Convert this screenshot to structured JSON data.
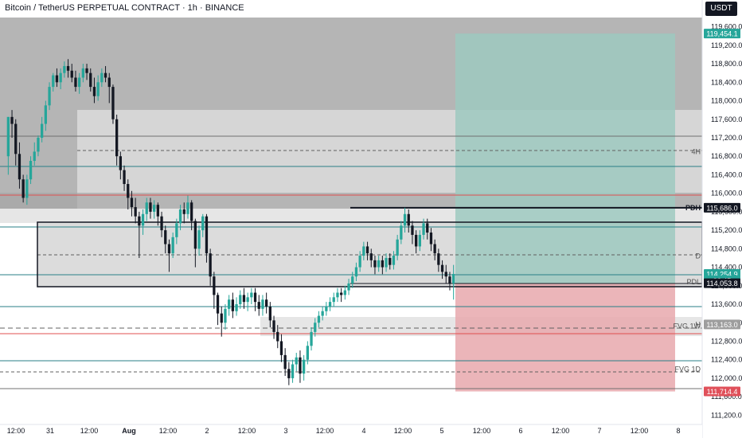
{
  "header": {
    "symbol": "Bitcoin / TetherUS PERPETUAL CONTRACT",
    "interval": "1h",
    "exchange": "BINANCE",
    "currency": "USDT"
  },
  "colors": {
    "up": "#26a69a",
    "down": "#131722",
    "target_zone": "#9ec9bf",
    "stop_zone": "#e8a8ad",
    "zone_gray": "#c8c8c8",
    "current_price": "#26a69a"
  },
  "chart_data": {
    "type": "candlestick",
    "y_range": [
      111000,
      119800
    ],
    "y_ticks": [
      119600,
      119200,
      118800,
      118400,
      118000,
      117600,
      117200,
      116800,
      116400,
      116000,
      115600,
      115200,
      114800,
      114400,
      114000,
      113600,
      113200,
      112800,
      112400,
      112000,
      111600,
      111200
    ],
    "x_tick_labels": [
      "12:00",
      "31",
      "12:00",
      "Aug",
      "12:00",
      "2",
      "12:00",
      "3",
      "12:00",
      "4",
      "12:00",
      "5",
      "12:00",
      "6",
      "12:00",
      "7",
      "12:00",
      "8"
    ],
    "price_tags": [
      {
        "label": "119,454.1",
        "value": 119454.1,
        "kind": "target"
      },
      {
        "label": "115,686.0",
        "value": 115686,
        "kind": "dark"
      },
      {
        "label": "114,254.9",
        "value": 114254.9,
        "kind": "current"
      },
      {
        "label": "06:45",
        "value": 114120,
        "kind": "current"
      },
      {
        "label": "114,053.8",
        "value": 114053.8,
        "kind": "dark"
      },
      {
        "label": "113,163.0",
        "value": 113163,
        "kind": "gray"
      },
      {
        "label": "111,714.4",
        "value": 111714.4,
        "kind": "stop"
      }
    ],
    "level_labels": [
      {
        "label": "4H",
        "value": 116900
      },
      {
        "label": "PDH",
        "value": 115686
      },
      {
        "label": "D",
        "value": 114640
      },
      {
        "label": "PDL",
        "value": 114080
      },
      {
        "label": "H",
        "value": 113163
      },
      {
        "label": "FVG 1W",
        "value": 113130
      },
      {
        "label": "FVG 1D",
        "value": 112200
      }
    ],
    "zones": {
      "entry": 114054,
      "target": 119454,
      "stop": 111714
    },
    "candles": [
      [
        116800,
        117650,
        117650,
        116400
      ],
      [
        117650,
        117500,
        117800,
        117200
      ],
      [
        117500,
        116850,
        117600,
        116600
      ],
      [
        116850,
        116300,
        117100,
        116100
      ],
      [
        116300,
        115900,
        116400,
        115800
      ],
      [
        115900,
        116300,
        116400,
        115750
      ],
      [
        116300,
        116700,
        116800,
        116200
      ],
      [
        116700,
        116900,
        117100,
        116600
      ],
      [
        116900,
        117200,
        117250,
        116800
      ],
      [
        117200,
        117500,
        117650,
        117100
      ],
      [
        117500,
        117900,
        118000,
        117350
      ],
      [
        117900,
        118300,
        118400,
        117800
      ],
      [
        118300,
        118550,
        118600,
        118200
      ],
      [
        118550,
        118400,
        118700,
        118300
      ],
      [
        118400,
        118600,
        118700,
        118250
      ],
      [
        118600,
        118750,
        118850,
        118500
      ],
      [
        118750,
        118650,
        118900,
        118500
      ],
      [
        118650,
        118500,
        118800,
        118400
      ],
      [
        118500,
        118300,
        118650,
        118200
      ],
      [
        118300,
        118500,
        118600,
        118150
      ],
      [
        118500,
        118700,
        118800,
        118400
      ],
      [
        118700,
        118600,
        118800,
        118450
      ],
      [
        118600,
        118300,
        118700,
        118200
      ],
      [
        118300,
        118100,
        118500,
        117950
      ],
      [
        118100,
        118400,
        118550,
        118000
      ],
      [
        118400,
        118600,
        118700,
        118300
      ],
      [
        118600,
        118500,
        118750,
        118400
      ],
      [
        118500,
        118300,
        118600,
        117950
      ],
      [
        118300,
        117600,
        118350,
        117500
      ],
      [
        117600,
        116800,
        117700,
        116600
      ],
      [
        116800,
        116500,
        116900,
        116300
      ],
      [
        116500,
        116200,
        116600,
        116050
      ],
      [
        116200,
        115900,
        116300,
        115650
      ],
      [
        115900,
        115700,
        116050,
        115500
      ],
      [
        115700,
        115500,
        115900,
        115350
      ],
      [
        115500,
        115300,
        115600,
        114600
      ],
      [
        115300,
        115550,
        115650,
        115100
      ],
      [
        115550,
        115800,
        115900,
        115400
      ],
      [
        115800,
        115600,
        115900,
        115450
      ],
      [
        115600,
        115750,
        115850,
        115450
      ],
      [
        115750,
        115500,
        115800,
        115300
      ],
      [
        115500,
        115200,
        115600,
        115050
      ],
      [
        115200,
        114900,
        115300,
        114700
      ],
      [
        114900,
        114700,
        115000,
        114300
      ],
      [
        114700,
        115050,
        115150,
        114600
      ],
      [
        115050,
        115350,
        115450,
        114900
      ],
      [
        115350,
        115650,
        115750,
        115200
      ],
      [
        115650,
        115550,
        115800,
        115350
      ],
      [
        115550,
        115800,
        115950,
        115450
      ],
      [
        115800,
        115400,
        115850,
        115200
      ],
      [
        115400,
        114800,
        115450,
        114400
      ],
      [
        114800,
        115200,
        115300,
        114650
      ],
      [
        115200,
        115500,
        115550,
        115050
      ],
      [
        115500,
        114700,
        115550,
        114500
      ],
      [
        114700,
        114200,
        114800,
        114000
      ],
      [
        114200,
        113800,
        114300,
        113500
      ],
      [
        113800,
        113400,
        113850,
        113150
      ],
      [
        113400,
        113200,
        113550,
        112900
      ],
      [
        113200,
        113500,
        113600,
        113050
      ],
      [
        113500,
        113700,
        113800,
        113350
      ],
      [
        113700,
        113450,
        113850,
        113300
      ],
      [
        113450,
        113600,
        113750,
        113350
      ],
      [
        113600,
        113800,
        113900,
        113500
      ],
      [
        113800,
        113650,
        113950,
        113500
      ],
      [
        113650,
        113750,
        113850,
        113450
      ],
      [
        113750,
        113850,
        113950,
        113600
      ],
      [
        113850,
        113650,
        113950,
        113450
      ],
      [
        113650,
        113500,
        113800,
        113350
      ],
      [
        113500,
        113700,
        113800,
        113350
      ],
      [
        113700,
        113550,
        113850,
        113400
      ],
      [
        113550,
        113250,
        113650,
        113100
      ],
      [
        113250,
        113000,
        113350,
        112850
      ],
      [
        113000,
        112800,
        113150,
        112650
      ],
      [
        112800,
        112500,
        112950,
        112350
      ],
      [
        112500,
        112200,
        112650,
        112050
      ],
      [
        112200,
        112000,
        112350,
        111850
      ],
      [
        112000,
        112300,
        112400,
        111900
      ],
      [
        112300,
        112450,
        112550,
        112150
      ],
      [
        112450,
        112100,
        112600,
        111900
      ],
      [
        112100,
        112400,
        112500,
        111950
      ],
      [
        112400,
        112700,
        112800,
        112300
      ],
      [
        112700,
        113000,
        113100,
        112600
      ],
      [
        113000,
        113200,
        113300,
        112900
      ],
      [
        113200,
        113350,
        113450,
        113100
      ],
      [
        113350,
        113450,
        113550,
        113250
      ],
      [
        113450,
        113550,
        113650,
        113350
      ],
      [
        113550,
        113650,
        113750,
        113450
      ],
      [
        113650,
        113750,
        113850,
        113550
      ],
      [
        113750,
        113850,
        113950,
        113650
      ],
      [
        113850,
        113800,
        113950,
        113650
      ],
      [
        113800,
        113900,
        114000,
        113700
      ],
      [
        113900,
        114050,
        114150,
        113800
      ],
      [
        114050,
        114200,
        114300,
        113950
      ],
      [
        114200,
        114400,
        114500,
        114100
      ],
      [
        114400,
        114650,
        114750,
        114300
      ],
      [
        114650,
        114850,
        114950,
        114550
      ],
      [
        114850,
        114700,
        114950,
        114550
      ],
      [
        114700,
        114550,
        114800,
        114400
      ],
      [
        114550,
        114400,
        114650,
        114250
      ],
      [
        114400,
        114550,
        114650,
        114300
      ],
      [
        114550,
        114400,
        114650,
        114250
      ],
      [
        114400,
        114600,
        114700,
        114300
      ],
      [
        114600,
        114450,
        114700,
        114350
      ],
      [
        114450,
        114650,
        114750,
        114350
      ],
      [
        114650,
        115000,
        115100,
        114550
      ],
      [
        115000,
        115300,
        115400,
        114900
      ],
      [
        115300,
        115550,
        115686,
        115150
      ],
      [
        115550,
        115300,
        115650,
        115150
      ],
      [
        115300,
        115100,
        115400,
        114900
      ],
      [
        115100,
        114850,
        115200,
        114700
      ],
      [
        114850,
        115100,
        115200,
        114750
      ],
      [
        115100,
        115350,
        115450,
        115000
      ],
      [
        115350,
        115150,
        115450,
        115000
      ],
      [
        115150,
        114900,
        115250,
        114750
      ],
      [
        114900,
        114700,
        115000,
        114550
      ],
      [
        114700,
        114450,
        114800,
        114300
      ],
      [
        114450,
        114300,
        114550,
        114150
      ],
      [
        114300,
        114200,
        114450,
        114050
      ],
      [
        114200,
        114050,
        114300,
        113900
      ],
      [
        114050,
        114254.9,
        114450,
        113700
      ]
    ]
  }
}
